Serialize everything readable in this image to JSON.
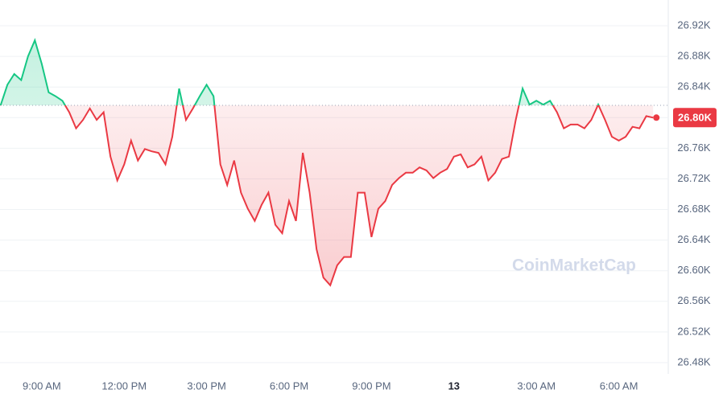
{
  "chart_data": {
    "type": "line",
    "watermark": "CoinMarketCap",
    "up_color": "#16c784",
    "down_color": "#ea3943",
    "baseline": 26816,
    "current": {
      "value": 26800,
      "label": "26.80K"
    },
    "grid": true,
    "xlim": [
      7.48,
      31.8
    ],
    "ylim": [
      26460,
      26940
    ],
    "xticks": [
      {
        "value": 9,
        "label": "9:00 AM"
      },
      {
        "value": 12,
        "label": "12:00 PM"
      },
      {
        "value": 15,
        "label": "3:00 PM"
      },
      {
        "value": 18,
        "label": "6:00 PM"
      },
      {
        "value": 21,
        "label": "9:00 PM"
      },
      {
        "value": 24,
        "label": "13"
      },
      {
        "value": 27,
        "label": "3:00 AM"
      },
      {
        "value": 30,
        "label": "6:00 AM"
      }
    ],
    "yticks": [
      {
        "value": 26480,
        "label": "26.48K"
      },
      {
        "value": 26520,
        "label": "26.52K"
      },
      {
        "value": 26560,
        "label": "26.56K"
      },
      {
        "value": 26600,
        "label": "26.60K"
      },
      {
        "value": 26640,
        "label": "26.64K"
      },
      {
        "value": 26680,
        "label": "26.68K"
      },
      {
        "value": 26720,
        "label": "26.72K"
      },
      {
        "value": 26760,
        "label": "26.76K"
      },
      {
        "value": 26800,
        "label": "26.80K"
      },
      {
        "value": 26840,
        "label": "26.84K"
      },
      {
        "value": 26880,
        "label": "26.88K"
      },
      {
        "value": 26920,
        "label": "26.92K"
      }
    ],
    "x": [
      7.5,
      7.75,
      8,
      8.25,
      8.5,
      8.75,
      9,
      9.25,
      9.5,
      9.75,
      10,
      10.25,
      10.5,
      10.75,
      11,
      11.25,
      11.5,
      11.75,
      12,
      12.25,
      12.5,
      12.75,
      13,
      13.25,
      13.5,
      13.75,
      14,
      14.25,
      14.5,
      14.75,
      15,
      15.25,
      15.5,
      15.75,
      16,
      16.25,
      16.5,
      16.75,
      17,
      17.25,
      17.5,
      17.75,
      18,
      18.25,
      18.5,
      18.75,
      19,
      19.25,
      19.5,
      19.75,
      20,
      20.25,
      20.5,
      20.75,
      21,
      21.25,
      21.5,
      21.75,
      22,
      22.25,
      22.5,
      22.75,
      23,
      23.25,
      23.5,
      23.75,
      24,
      24.25,
      24.5,
      24.75,
      25,
      25.25,
      25.5,
      25.75,
      26,
      26.25,
      26.5,
      26.75,
      27,
      27.25,
      27.5,
      27.75,
      28,
      28.25,
      28.5,
      28.75,
      29,
      29.25,
      29.5,
      29.75,
      30,
      30.25,
      30.5,
      30.75,
      31,
      31.25
    ],
    "values": [
      26816,
      26843,
      26857,
      26849,
      26880,
      26901,
      26870,
      26833,
      26828,
      26822,
      26807,
      26786,
      26797,
      26812,
      26797,
      26807,
      26749,
      26718,
      26739,
      26770,
      26744,
      26759,
      26756,
      26754,
      26739,
      26775,
      26838,
      26797,
      26812,
      26828,
      26843,
      26828,
      26739,
      26712,
      26744,
      26702,
      26681,
      26665,
      26686,
      26702,
      26660,
      26649,
      26691,
      26665,
      26754,
      26702,
      26628,
      26591,
      26581,
      26607,
      26618,
      26618,
      26702,
      26702,
      26644,
      26681,
      26691,
      26712,
      26721,
      26728,
      26728,
      26735,
      26731,
      26721,
      26728,
      26733,
      26749,
      26752,
      26735,
      26739,
      26749,
      26718,
      26728,
      26746,
      26749,
      26797,
      26838,
      26817,
      26822,
      26817,
      26822,
      26807,
      26786,
      26791,
      26791,
      26786,
      26797,
      26817,
      26797,
      26775,
      26770,
      26775,
      26788,
      26786,
      26802,
      26800
    ]
  }
}
